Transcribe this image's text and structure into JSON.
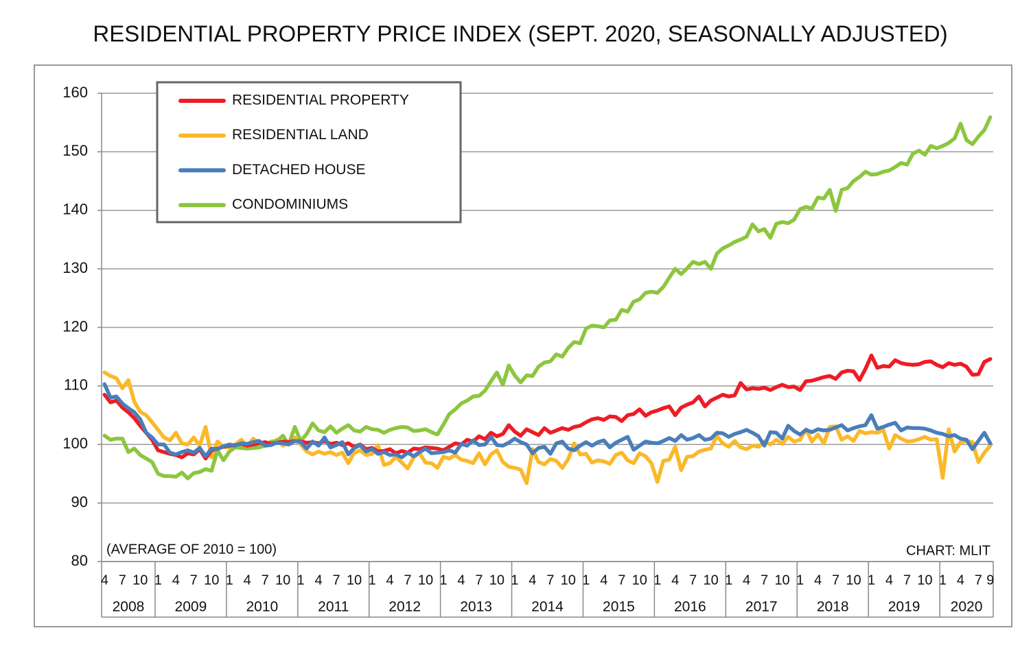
{
  "chart_data": {
    "type": "line",
    "title": "RESIDENTIAL PROPERTY PRICE INDEX (SEPT. 2020, SEASONALLY ADJUSTED)",
    "annotation_left": "(AVERAGE OF 2010 = 100)",
    "annotation_right": "CHART: MLIT",
    "ylim": [
      80,
      160
    ],
    "yticks": [
      80,
      90,
      100,
      110,
      120,
      130,
      140,
      150,
      160
    ],
    "grid": true,
    "legend": "top-left",
    "year_labels": [
      "2008",
      "2009",
      "2010",
      "2011",
      "2012",
      "2013",
      "2014",
      "2015",
      "2016",
      "2017",
      "2018",
      "2019",
      "2020"
    ],
    "categories": [
      "4",
      null,
      null,
      "7",
      null,
      null,
      "10",
      null,
      null,
      "1",
      null,
      null,
      "4",
      null,
      null,
      "7",
      null,
      null,
      "10",
      null,
      null,
      "1",
      null,
      null,
      "4",
      null,
      null,
      "7",
      null,
      null,
      "10",
      null,
      null,
      "1",
      null,
      null,
      "4",
      null,
      null,
      "7",
      null,
      null,
      "10",
      null,
      null,
      "1",
      null,
      null,
      "4",
      null,
      null,
      "7",
      null,
      null,
      "10",
      null,
      null,
      "1",
      null,
      null,
      "4",
      null,
      null,
      "7",
      null,
      null,
      "10",
      null,
      null,
      "1",
      null,
      null,
      "4",
      null,
      null,
      "7",
      null,
      null,
      "10",
      null,
      null,
      "1",
      null,
      null,
      "4",
      null,
      null,
      "7",
      null,
      null,
      "10",
      null,
      null,
      "1",
      null,
      null,
      "4",
      null,
      null,
      "7",
      null,
      null,
      "10",
      null,
      null,
      "1",
      null,
      null,
      "4",
      null,
      null,
      "7",
      null,
      null,
      "10",
      null,
      null,
      "1",
      null,
      null,
      "4",
      null,
      null,
      "7",
      null,
      null,
      "10",
      null,
      null,
      "1",
      null,
      null,
      "4",
      null,
      null,
      "7",
      null,
      null,
      "10",
      null,
      null,
      "1",
      null,
      null,
      "4",
      null,
      null,
      "7",
      null,
      "9"
    ],
    "series": [
      {
        "name": "RESIDENTIAL PROPERTY",
        "color": "#ee1c25",
        "values": [
          108.5,
          107.2,
          107.5,
          106.3,
          105.5,
          104.5,
          103.2,
          102.0,
          100.8,
          99.0,
          98.7,
          98.4,
          98.2,
          97.8,
          98.5,
          98.3,
          99.2,
          97.6,
          99.0,
          99.3,
          99.6,
          99.8,
          99.9,
          100.1,
          99.8,
          100.0,
          100.2,
          100.4,
          100.1,
          100.3,
          100.5,
          100.4,
          100.6,
          100.5,
          100.3,
          100.4,
          100.2,
          100.6,
          100.1,
          100.3,
          99.9,
          100.2,
          99.6,
          100.0,
          99.2,
          99.4,
          98.8,
          98.9,
          99.2,
          98.5,
          98.9,
          98.6,
          99.3,
          99.2,
          99.5,
          99.4,
          99.3,
          99.0,
          99.6,
          100.2,
          100.0,
          100.8,
          100.5,
          101.4,
          100.9,
          102.0,
          101.4,
          101.8,
          103.3,
          102.2,
          101.5,
          102.6,
          102.1,
          101.6,
          102.8,
          102.0,
          102.4,
          102.8,
          102.5,
          103.0,
          103.2,
          103.8,
          104.3,
          104.5,
          104.2,
          104.8,
          104.7,
          104.0,
          105.0,
          105.2,
          106.0,
          104.9,
          105.5,
          105.8,
          106.2,
          106.5,
          105.0,
          106.3,
          106.8,
          107.2,
          108.2,
          106.5,
          107.5,
          108.0,
          108.5,
          108.2,
          108.4,
          110.5,
          109.4,
          109.6,
          109.5,
          109.7,
          109.3,
          109.8,
          110.2,
          109.8,
          109.9,
          109.3,
          110.8,
          110.9,
          111.2,
          111.5,
          111.7,
          111.2,
          112.3,
          112.6,
          112.5,
          111.0,
          112.9,
          115.2,
          113.1,
          113.4,
          113.3,
          114.4,
          113.9,
          113.7,
          113.6,
          113.7,
          114.1,
          114.2,
          113.6,
          113.2,
          113.9,
          113.6,
          113.8,
          113.3,
          111.9,
          112.0,
          114.1,
          114.6
        ]
      },
      {
        "name": "RESIDENTIAL LAND",
        "color": "#fbb829",
        "values": [
          112.3,
          111.7,
          111.3,
          109.6,
          111.0,
          107.3,
          105.6,
          105.0,
          103.8,
          102.5,
          101.2,
          100.7,
          102.0,
          100.2,
          100.0,
          101.2,
          99.8,
          103.0,
          97.8,
          100.5,
          99.6,
          99.5,
          100.0,
          100.8,
          99.6,
          101.0,
          100.3,
          99.8,
          100.2,
          100.8,
          99.8,
          100.4,
          101.2,
          100.0,
          98.8,
          98.3,
          98.8,
          98.4,
          98.7,
          98.2,
          98.6,
          96.8,
          98.6,
          99.0,
          98.2,
          98.4,
          99.9,
          96.5,
          96.8,
          97.9,
          96.9,
          95.9,
          97.8,
          98.5,
          96.9,
          96.8,
          96.0,
          97.9,
          97.6,
          98.2,
          97.4,
          97.2,
          96.8,
          98.5,
          96.6,
          98.3,
          99.0,
          97.0,
          96.2,
          96.0,
          95.7,
          93.4,
          99.2,
          97.0,
          96.6,
          97.5,
          97.2,
          96.0,
          97.5,
          100.2,
          98.3,
          98.4,
          96.9,
          97.3,
          97.1,
          96.7,
          98.2,
          98.6,
          97.3,
          96.8,
          98.5,
          98.0,
          96.8,
          93.6,
          97.2,
          97.4,
          99.6,
          95.6,
          97.9,
          98.0,
          98.8,
          99.1,
          99.3,
          101.5,
          100.2,
          99.6,
          100.6,
          99.5,
          99.2,
          99.8,
          99.6,
          100.5,
          100.0,
          100.8,
          100.1,
          101.3,
          100.5,
          100.8,
          102.6,
          100.5,
          101.7,
          100.2,
          103.0,
          103.1,
          100.8,
          101.4,
          100.6,
          102.3,
          101.9,
          102.1,
          102.0,
          102.5,
          99.3,
          101.6,
          101.0,
          100.5,
          100.6,
          100.9,
          101.3,
          100.8,
          100.9,
          94.3,
          102.6,
          98.8,
          100.4,
          100.6,
          100.4,
          97.0,
          98.6,
          99.8
        ]
      },
      {
        "name": "DETACHED HOUSE",
        "color": "#4a7ebb",
        "values": [
          110.3,
          108.0,
          108.2,
          107.0,
          106.2,
          105.5,
          104.3,
          102.0,
          101.2,
          100.0,
          100.0,
          98.6,
          98.3,
          98.7,
          99.0,
          98.6,
          99.4,
          98.0,
          99.3,
          99.2,
          99.7,
          100.0,
          99.8,
          100.2,
          100.1,
          100.4,
          100.6,
          99.8,
          99.9,
          100.3,
          100.2,
          100.0,
          100.6,
          100.4,
          99.3,
          100.5,
          99.8,
          101.2,
          99.5,
          99.9,
          100.4,
          98.3,
          99.4,
          99.9,
          98.8,
          99.2,
          98.4,
          98.7,
          98.2,
          98.3,
          97.8,
          98.6,
          98.0,
          98.7,
          99.3,
          98.5,
          98.6,
          98.7,
          99.0,
          98.6,
          100.1,
          99.8,
          100.7,
          99.9,
          100.0,
          101.3,
          99.9,
          99.8,
          100.3,
          101.0,
          100.4,
          100.0,
          98.5,
          99.4,
          99.6,
          98.4,
          100.2,
          100.5,
          99.3,
          99.0,
          99.8,
          100.4,
          99.8,
          100.4,
          100.7,
          99.5,
          100.3,
          100.8,
          101.3,
          99.1,
          99.8,
          100.5,
          100.3,
          100.2,
          100.6,
          101.1,
          100.6,
          101.6,
          100.8,
          101.1,
          101.6,
          100.8,
          101.0,
          102.0,
          101.9,
          101.3,
          101.8,
          102.1,
          102.5,
          102.0,
          101.4,
          99.8,
          102.1,
          102.0,
          101.0,
          103.2,
          102.3,
          101.7,
          102.5,
          102.1,
          102.6,
          102.4,
          102.5,
          102.9,
          103.3,
          102.4,
          102.8,
          103.1,
          103.3,
          105.0,
          102.7,
          103.0,
          103.4,
          103.7,
          102.4,
          102.9,
          102.8,
          102.8,
          102.7,
          102.4,
          102.0,
          101.8,
          101.4,
          101.6,
          101.0,
          100.8,
          99.2,
          100.6,
          102.0,
          100.2
        ]
      },
      {
        "name": "CONDOMINIUMS",
        "color": "#8cc63f",
        "values": [
          101.5,
          100.8,
          101.0,
          101.0,
          98.7,
          99.3,
          98.2,
          97.6,
          97.0,
          95.0,
          94.6,
          94.6,
          94.5,
          95.2,
          94.2,
          95.1,
          95.3,
          95.8,
          95.5,
          99.0,
          97.3,
          98.8,
          99.5,
          99.4,
          99.3,
          99.4,
          99.5,
          99.8,
          100.5,
          100.6,
          101.5,
          100.0,
          103.0,
          100.6,
          101.8,
          103.6,
          102.4,
          102.1,
          103.1,
          102.0,
          102.7,
          103.3,
          102.4,
          102.2,
          103.0,
          102.6,
          102.5,
          102.0,
          102.5,
          102.8,
          103.0,
          102.9,
          102.3,
          102.4,
          102.6,
          102.1,
          101.7,
          103.4,
          105.2,
          106.0,
          107.0,
          107.5,
          108.2,
          108.3,
          109.2,
          110.8,
          112.3,
          110.2,
          113.5,
          111.8,
          110.6,
          111.8,
          111.7,
          113.3,
          114.0,
          114.2,
          115.4,
          115.0,
          116.5,
          117.5,
          117.3,
          119.8,
          120.3,
          120.2,
          120.0,
          121.2,
          121.3,
          123.0,
          122.7,
          124.4,
          124.8,
          125.9,
          126.1,
          125.9,
          126.9,
          128.5,
          130.0,
          129.1,
          130.1,
          131.2,
          130.8,
          131.2,
          130.0,
          132.6,
          133.5,
          134.0,
          134.6,
          135.0,
          135.5,
          137.6,
          136.4,
          136.8,
          135.3,
          137.7,
          138.0,
          137.8,
          138.4,
          140.2,
          140.6,
          140.3,
          142.2,
          142.0,
          143.5,
          139.9,
          143.5,
          143.8,
          145.0,
          145.7,
          146.6,
          146.1,
          146.2,
          146.6,
          146.8,
          147.4,
          148.1,
          147.8,
          149.7,
          150.2,
          149.5,
          151.0,
          150.6,
          151.0,
          151.5,
          152.3,
          154.8,
          152.0,
          151.3,
          152.6,
          153.7,
          155.9
        ]
      }
    ]
  }
}
